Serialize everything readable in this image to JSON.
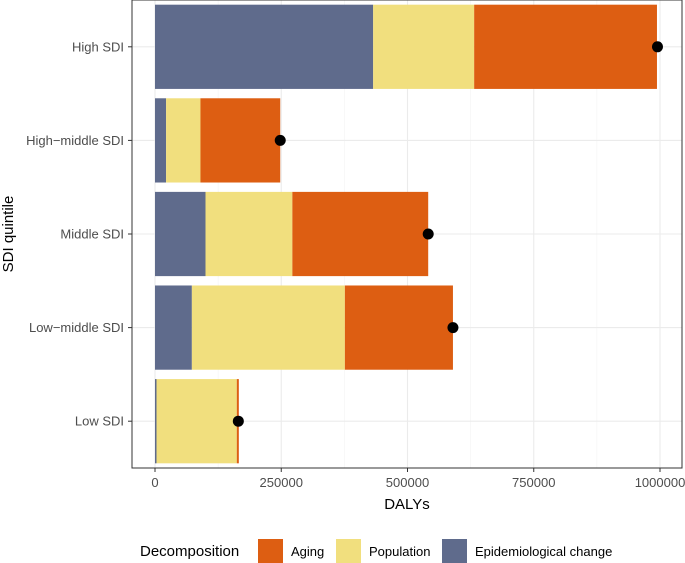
{
  "chart_data": {
    "type": "bar",
    "orientation": "horizontal",
    "stacked": true,
    "title": "",
    "xlabel": "DALYs",
    "ylabel": "SDI quintile",
    "xlim": [
      -40000,
      1050000
    ],
    "x_ticks": [
      0,
      250000,
      500000,
      750000,
      1000000
    ],
    "x_tick_labels": [
      "0",
      "250000",
      "500000",
      "750000",
      "1000000"
    ],
    "grid": true,
    "categories": [
      "High SDI",
      "High−middle SDI",
      "Middle SDI",
      "Low−middle SDI",
      "Low SDI"
    ],
    "series": [
      {
        "name": "Epidemiological change",
        "color": "#5f6b8c",
        "values": [
          432000,
          22000,
          100000,
          73000,
          3000
        ]
      },
      {
        "name": "Population",
        "color": "#f1df7e",
        "values": [
          200000,
          68000,
          172000,
          303000,
          159000
        ]
      },
      {
        "name": "Aging",
        "color": "#dd5e12",
        "values": [
          362000,
          158000,
          269000,
          214000,
          4000
        ]
      }
    ],
    "totals": [
      995000,
      248000,
      541000,
      590000,
      165000
    ],
    "point_color": "#000000",
    "legend": {
      "title": "Decomposition",
      "position": "bottom",
      "items": [
        {
          "label": "Aging",
          "color": "#dd5e12"
        },
        {
          "label": "Population",
          "color": "#f1df7e"
        },
        {
          "label": "Epidemiological change",
          "color": "#5f6b8c"
        }
      ]
    }
  }
}
